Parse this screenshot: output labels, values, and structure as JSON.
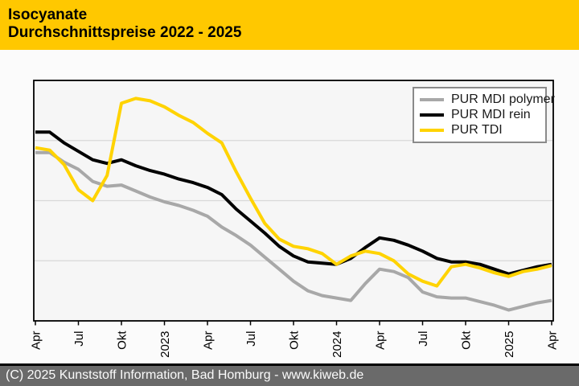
{
  "header": {
    "title_line1": "Isocyanate",
    "title_line2": "Durchschnittspreise 2022 - 2025",
    "background": "#ffc800",
    "text_color": "#000000"
  },
  "footer": {
    "text": "(C) 2025 Kunststoff Information, Bad Homburg - www.kiweb.de",
    "background": "#6a6a6a",
    "text_color": "#fbfbfb"
  },
  "chart_data": {
    "type": "line",
    "title": "Isocyanate Durchschnittspreise 2022 - 2025",
    "x_unit": "month",
    "x_start": "Apr 2022",
    "x_end": "Apr 2025",
    "months_count": 37,
    "x_tick_labels": [
      "Apr",
      "Jul",
      "Okt",
      "2023",
      "Apr",
      "Jul",
      "Okt",
      "2024",
      "Apr",
      "Jul",
      "Okt",
      "2025",
      "Apr"
    ],
    "x_tick_positions": [
      0,
      3,
      6,
      9,
      12,
      15,
      18,
      21,
      24,
      27,
      30,
      33,
      36
    ],
    "xlabel": "",
    "ylabel": "",
    "y_axis_labeled": false,
    "y_scale_note": "relative price index 0-100, y axis shown without numeric labels",
    "ylim": [
      0,
      100
    ],
    "gridlines_y": [
      25,
      50,
      75
    ],
    "grid": "horizontal-only",
    "legend_position": "top-right",
    "plot_background": "#f6f6f6",
    "frame_color": "#000000",
    "gridline_color": "#d9d9d9",
    "series": [
      {
        "name": "PUR MDI polymer",
        "color": "#a8a8a8",
        "values": [
          70,
          70,
          66,
          63,
          58,
          56,
          56.5,
          54,
          51.5,
          49.5,
          48,
          46,
          43.5,
          39,
          35.5,
          31.5,
          26.5,
          21.5,
          16.5,
          12.5,
          10.5,
          9.5,
          8.5,
          15.5,
          21.5,
          20.5,
          18,
          12,
          10,
          9.5,
          9.5,
          8,
          6.5,
          4.5,
          6,
          7.5,
          8.5
        ]
      },
      {
        "name": "PUR MDI rein",
        "color": "#000000",
        "values": [
          78.5,
          78.5,
          74,
          70.5,
          67,
          65.5,
          67,
          64.5,
          62.5,
          61,
          59,
          57.5,
          55.5,
          52.5,
          46.5,
          41.5,
          36.5,
          31,
          27,
          24.5,
          24,
          23.5,
          26,
          30.5,
          34.5,
          33.5,
          31.5,
          29,
          26,
          24.5,
          24.5,
          23.5,
          21.5,
          19.5,
          21,
          22.5,
          23.5
        ]
      },
      {
        "name": "PUR TDI",
        "color": "#ffd300",
        "values": [
          72,
          71,
          65,
          54.5,
          50,
          60.5,
          90.5,
          92.5,
          91.5,
          89,
          85.5,
          82.5,
          78,
          74,
          62,
          51,
          40.5,
          34,
          31,
          30,
          28,
          23.5,
          27,
          29,
          28,
          25,
          19.5,
          16.5,
          14.5,
          22.5,
          23.5,
          22,
          20,
          18.5,
          20.5,
          21.5,
          23
        ]
      }
    ]
  }
}
